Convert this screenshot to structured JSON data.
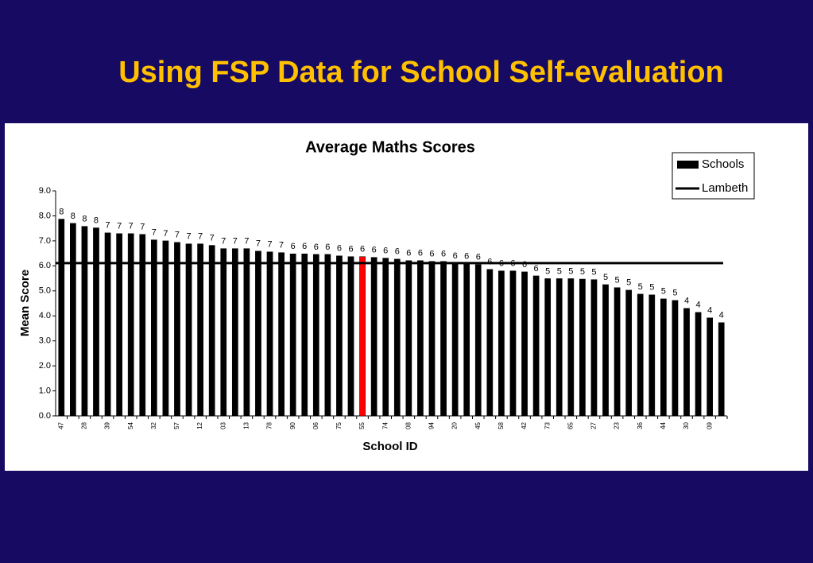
{
  "title": "Using FSP Data for School Self-evaluation",
  "chart_data": {
    "type": "bar",
    "title": "Average Maths Scores",
    "x_label": "School ID",
    "y_label": "Mean Score",
    "categories": [
      "47",
      null,
      "28",
      null,
      "39",
      null,
      "54",
      null,
      "32",
      null,
      "57",
      null,
      "12",
      null,
      "03",
      null,
      "13",
      null,
      "78",
      null,
      "90",
      null,
      "06",
      null,
      "75",
      null,
      "55",
      null,
      "74",
      null,
      "08",
      null,
      "94",
      null,
      "20",
      null,
      "45",
      null,
      "58",
      null,
      "42",
      null,
      "73",
      null,
      "65",
      null,
      "27",
      null,
      "23",
      null,
      "36",
      null,
      "44",
      null,
      "30",
      null,
      "09",
      null
    ],
    "series": [
      {
        "name": "Schools",
        "color": "#000000",
        "values": [
          7.87,
          7.7,
          7.58,
          7.52,
          7.32,
          7.29,
          7.29,
          7.26,
          7.04,
          7.0,
          6.94,
          6.88,
          6.88,
          6.82,
          6.69,
          6.69,
          6.69,
          6.59,
          6.56,
          6.53,
          6.48,
          6.48,
          6.46,
          6.46,
          6.4,
          6.37,
          6.37,
          6.34,
          6.31,
          6.27,
          6.21,
          6.21,
          6.18,
          6.18,
          6.11,
          6.08,
          6.05,
          5.86,
          5.8,
          5.8,
          5.76,
          5.6,
          5.49,
          5.49,
          5.49,
          5.47,
          5.45,
          5.25,
          5.13,
          5.03,
          4.87,
          4.84,
          4.68,
          4.62,
          4.3,
          4.14,
          3.92,
          3.73
        ],
        "value_labels": [
          "8",
          "8",
          "8",
          "8",
          "7",
          "7",
          "7",
          "7",
          "7",
          "7",
          "7",
          "7",
          "7",
          "7",
          "7",
          "7",
          "7",
          "7",
          "7",
          "7",
          "6",
          "6",
          "6",
          "6",
          "6",
          "6",
          "6",
          "6",
          "6",
          "6",
          "6",
          "6",
          "6",
          "6",
          "6",
          "6",
          "6",
          "6",
          "6",
          "6",
          "6",
          "6",
          "5",
          "5",
          "5",
          "5",
          "5",
          "5",
          "5",
          "5",
          "5",
          "5",
          "5",
          "5",
          "4",
          "4",
          "4",
          "4"
        ]
      }
    ],
    "highlight": {
      "index": 26,
      "color": "#ff0000"
    },
    "reference_line": {
      "name": "Lambeth",
      "value": 6.11,
      "color": "#000000"
    },
    "ylim": [
      0,
      9
    ],
    "yticks": [
      {
        "value": 0,
        "label": "0.0"
      },
      {
        "value": 1,
        "label": "1.0"
      },
      {
        "value": 2,
        "label": "2.0"
      },
      {
        "value": 3,
        "label": "3.0"
      },
      {
        "value": 4,
        "label": "4.0"
      },
      {
        "value": 5,
        "label": "5.0"
      },
      {
        "value": 6,
        "label": "6.0"
      },
      {
        "value": 7,
        "label": "7.0"
      },
      {
        "value": 8,
        "label": "8.0"
      },
      {
        "value": 9,
        "label": "9.0"
      }
    ],
    "grid": false,
    "legend": "top-right"
  }
}
